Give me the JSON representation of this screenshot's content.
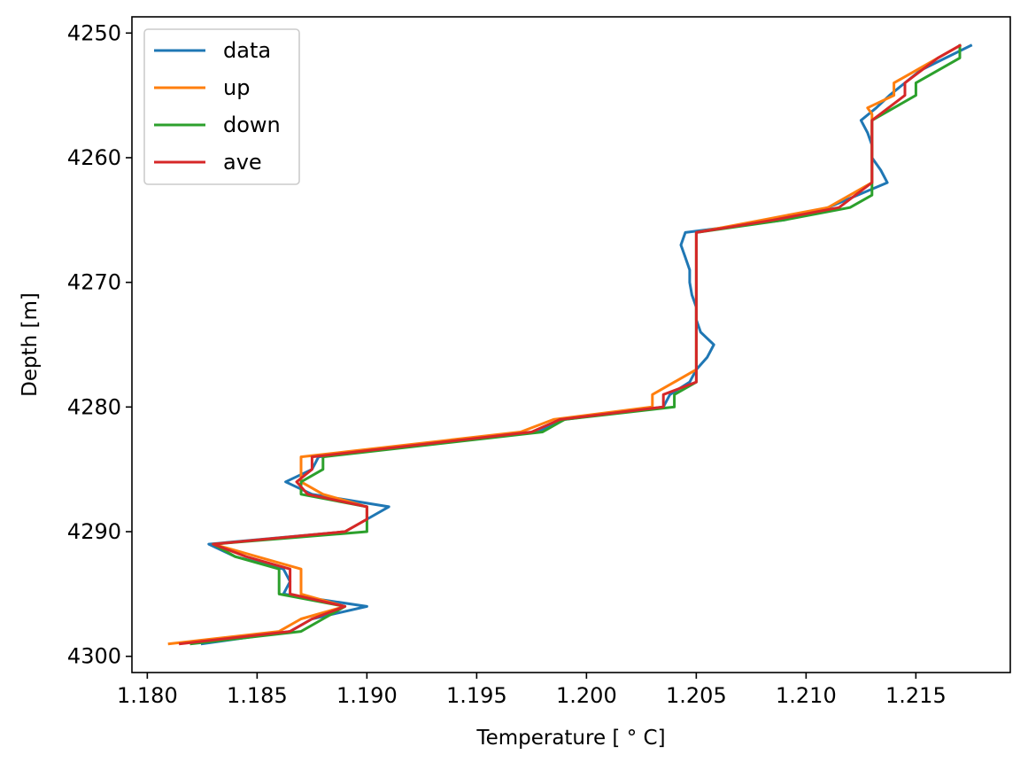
{
  "chart_data": {
    "type": "line",
    "xlabel": "Temperature [$^\\circ$C]",
    "xlabel_display": "Temperature [ ° C]",
    "ylabel": "Depth [m]",
    "xlim": [
      1.1793,
      1.2193
    ],
    "ylim": [
      4301.3,
      4248.7
    ],
    "y_inverted": true,
    "grid": false,
    "legend": "upper left",
    "x_ticks": [
      {
        "value": 1.18,
        "label": "1.180"
      },
      {
        "value": 1.185,
        "label": "1.185"
      },
      {
        "value": 1.19,
        "label": "1.190"
      },
      {
        "value": 1.195,
        "label": "1.195"
      },
      {
        "value": 1.2,
        "label": "1.200"
      },
      {
        "value": 1.205,
        "label": "1.205"
      },
      {
        "value": 1.21,
        "label": "1.210"
      },
      {
        "value": 1.215,
        "label": "1.215"
      }
    ],
    "y_ticks": [
      {
        "value": 4250,
        "label": "4250"
      },
      {
        "value": 4260,
        "label": "4260"
      },
      {
        "value": 4270,
        "label": "4270"
      },
      {
        "value": 4280,
        "label": "4280"
      },
      {
        "value": 4290,
        "label": "4290"
      },
      {
        "value": 4300,
        "label": "4300"
      }
    ],
    "series": [
      {
        "name": "data",
        "color": "#1f77b4",
        "points": [
          [
            1.2175,
            4251
          ],
          [
            1.2152,
            4253
          ],
          [
            1.2138,
            4255
          ],
          [
            1.2132,
            4256
          ],
          [
            1.2125,
            4257
          ],
          [
            1.2128,
            4258
          ],
          [
            1.213,
            4259
          ],
          [
            1.213,
            4260
          ],
          [
            1.2134,
            4261
          ],
          [
            1.2137,
            4262
          ],
          [
            1.211,
            4264
          ],
          [
            1.209,
            4265
          ],
          [
            1.2045,
            4266
          ],
          [
            1.2043,
            4267
          ],
          [
            1.2045,
            4268
          ],
          [
            1.2047,
            4269
          ],
          [
            1.2047,
            4270
          ],
          [
            1.2048,
            4271
          ],
          [
            1.205,
            4272
          ],
          [
            1.205,
            4273
          ],
          [
            1.2052,
            4274
          ],
          [
            1.2058,
            4275
          ],
          [
            1.2055,
            4276
          ],
          [
            1.205,
            4277
          ],
          [
            1.2047,
            4278
          ],
          [
            1.2038,
            4279
          ],
          [
            1.2035,
            4280
          ],
          [
            1.199,
            4281
          ],
          [
            1.1978,
            4282
          ],
          [
            1.1878,
            4284
          ],
          [
            1.1875,
            4285
          ],
          [
            1.1863,
            4286
          ],
          [
            1.1875,
            4287
          ],
          [
            1.191,
            4288
          ],
          [
            1.19,
            4289
          ],
          [
            1.189,
            4290
          ],
          [
            1.1828,
            4291
          ],
          [
            1.184,
            4292
          ],
          [
            1.1862,
            4293
          ],
          [
            1.1865,
            4294
          ],
          [
            1.1862,
            4295
          ],
          [
            1.19,
            4296
          ],
          [
            1.1875,
            4297
          ],
          [
            1.1865,
            4298
          ],
          [
            1.1825,
            4299
          ]
        ]
      },
      {
        "name": "up",
        "color": "#ff7f0e",
        "points": [
          [
            1.217,
            4251
          ],
          [
            1.214,
            4254
          ],
          [
            1.214,
            4255
          ],
          [
            1.2128,
            4256
          ],
          [
            1.213,
            4256.5
          ],
          [
            1.213,
            4262
          ],
          [
            1.211,
            4264
          ],
          [
            1.208,
            4265
          ],
          [
            1.205,
            4266
          ],
          [
            1.205,
            4277
          ],
          [
            1.203,
            4279
          ],
          [
            1.203,
            4280
          ],
          [
            1.1985,
            4281
          ],
          [
            1.197,
            4282
          ],
          [
            1.187,
            4284
          ],
          [
            1.187,
            4286
          ],
          [
            1.188,
            4287
          ],
          [
            1.19,
            4288
          ],
          [
            1.19,
            4289
          ],
          [
            1.189,
            4290
          ],
          [
            1.183,
            4291
          ],
          [
            1.185,
            4292
          ],
          [
            1.187,
            4293
          ],
          [
            1.187,
            4295
          ],
          [
            1.189,
            4296
          ],
          [
            1.187,
            4297
          ],
          [
            1.186,
            4298
          ],
          [
            1.181,
            4299
          ]
        ]
      },
      {
        "name": "down",
        "color": "#2ca02c",
        "points": [
          [
            1.217,
            4251
          ],
          [
            1.217,
            4252
          ],
          [
            1.215,
            4254
          ],
          [
            1.215,
            4255
          ],
          [
            1.213,
            4257
          ],
          [
            1.213,
            4263
          ],
          [
            1.212,
            4264
          ],
          [
            1.209,
            4265
          ],
          [
            1.205,
            4266
          ],
          [
            1.205,
            4278
          ],
          [
            1.204,
            4279
          ],
          [
            1.204,
            4280
          ],
          [
            1.199,
            4281
          ],
          [
            1.198,
            4282
          ],
          [
            1.188,
            4284
          ],
          [
            1.188,
            4285
          ],
          [
            1.187,
            4286
          ],
          [
            1.187,
            4287
          ],
          [
            1.19,
            4288
          ],
          [
            1.19,
            4290
          ],
          [
            1.183,
            4291
          ],
          [
            1.184,
            4292
          ],
          [
            1.186,
            4293
          ],
          [
            1.186,
            4295
          ],
          [
            1.189,
            4296
          ],
          [
            1.188,
            4297
          ],
          [
            1.187,
            4298
          ],
          [
            1.182,
            4299
          ]
        ]
      },
      {
        "name": "ave",
        "color": "#d62728",
        "points": [
          [
            1.217,
            4251
          ],
          [
            1.216,
            4252
          ],
          [
            1.2145,
            4254
          ],
          [
            1.2145,
            4255
          ],
          [
            1.213,
            4257
          ],
          [
            1.213,
            4262
          ],
          [
            1.2115,
            4264
          ],
          [
            1.2085,
            4265
          ],
          [
            1.205,
            4266
          ],
          [
            1.205,
            4278
          ],
          [
            1.2035,
            4279
          ],
          [
            1.2035,
            4280
          ],
          [
            1.1988,
            4281
          ],
          [
            1.1975,
            4282
          ],
          [
            1.1875,
            4284
          ],
          [
            1.1875,
            4285
          ],
          [
            1.1868,
            4286
          ],
          [
            1.1873,
            4287
          ],
          [
            1.19,
            4288
          ],
          [
            1.19,
            4289
          ],
          [
            1.189,
            4290
          ],
          [
            1.183,
            4291
          ],
          [
            1.1845,
            4292
          ],
          [
            1.1865,
            4293
          ],
          [
            1.1865,
            4295
          ],
          [
            1.189,
            4296
          ],
          [
            1.1875,
            4297
          ],
          [
            1.1865,
            4298
          ],
          [
            1.1815,
            4299
          ]
        ]
      }
    ]
  }
}
